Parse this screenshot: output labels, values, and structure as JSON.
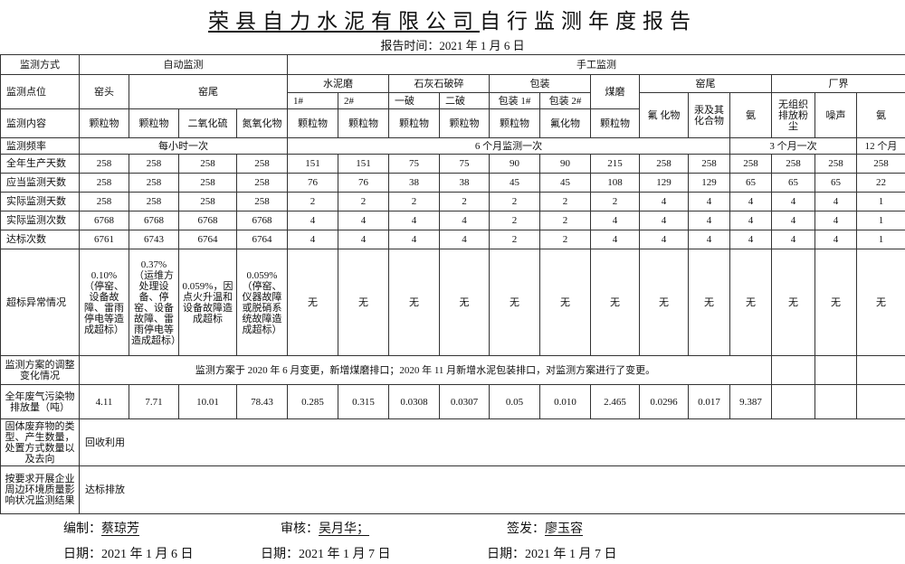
{
  "title": {
    "company": "荣县自力水泥有限公司",
    "rest": "自行监测年度报告"
  },
  "report_time": "报告时间：2021 年 1 月 6 日",
  "header": {
    "method_label": "监测方式",
    "auto": "自动监测",
    "manual": "手工监测",
    "point_label": "监测点位",
    "kiln_head": "窑头",
    "kiln_tail": "窑尾",
    "cement_mill": "水泥磨",
    "mill1": "1#",
    "mill2": "2#",
    "crusher": "石灰石破碎",
    "crusher1": "一破",
    "crusher2": "二破",
    "packing": "包装",
    "pack1": "包装 1#",
    "pack2": "包装 2#",
    "coal_mill": "煤磨",
    "kiln_tail_manual": "窑尾",
    "boundary": "厂界",
    "content_label": "监测内容",
    "contents": [
      "颗粒物",
      "颗粒物",
      "二氧化硫",
      "氮氧化物",
      "颗粒物",
      "颗粒物",
      "颗粒物",
      "颗粒物",
      "颗粒物",
      "氟化物",
      "颗粒物",
      "氟 化物",
      "汞及其化合物",
      "氨",
      "无组织排放粉尘",
      "噪声",
      "氨"
    ],
    "freq_label": "监测频率",
    "freq_auto": "每小时一次",
    "freq_6m": "6 个月监测一次",
    "freq_3m": "3 个月一次",
    "freq_12m": "12 个月"
  },
  "rows": [
    {
      "label": "全年生产天数",
      "values": [
        "258",
        "258",
        "258",
        "258",
        "151",
        "151",
        "75",
        "75",
        "90",
        "90",
        "215",
        "258",
        "258",
        "258",
        "258",
        "258",
        "258"
      ]
    },
    {
      "label": "应当监测天数",
      "values": [
        "258",
        "258",
        "258",
        "258",
        "76",
        "76",
        "38",
        "38",
        "45",
        "45",
        "108",
        "129",
        "129",
        "65",
        "65",
        "65",
        "22"
      ]
    },
    {
      "label": "实际监测天数",
      "values": [
        "258",
        "258",
        "258",
        "258",
        "2",
        "2",
        "2",
        "2",
        "2",
        "2",
        "2",
        "4",
        "4",
        "4",
        "4",
        "4",
        "1"
      ]
    },
    {
      "label": "实际监测次数",
      "values": [
        "6768",
        "6768",
        "6768",
        "6768",
        "4",
        "4",
        "4",
        "4",
        "2",
        "2",
        "4",
        "4",
        "4",
        "4",
        "4",
        "4",
        "1"
      ]
    },
    {
      "label": "达标次数",
      "values": [
        "6761",
        "6743",
        "6764",
        "6764",
        "4",
        "4",
        "4",
        "4",
        "2",
        "2",
        "4",
        "4",
        "4",
        "4",
        "4",
        "4",
        "1"
      ]
    }
  ],
  "anomaly": {
    "label": "超标异常情况",
    "values": [
      "0.10%（停窑、设备故障、雷雨停电等造成超标）",
      "0.37%（运维方处理设备、停窑、设备故障、雷雨停电等造成超标）",
      "0.059%，因点火升温和设备故障造成超标",
      "0.059%（停窑、仪器故障或脱硝系统故障造成超标）",
      "无",
      "无",
      "无",
      "无",
      "无",
      "无",
      "无",
      "无",
      "无",
      "无",
      "无",
      "无",
      "无"
    ]
  },
  "plan_change": {
    "label": "监测方案的调整变化情况",
    "text": "监测方案于 2020 年 6 月变更，新增煤磨排口；2020 年 11 月新增水泥包装排口，对监测方案进行了变更。"
  },
  "emissions": {
    "label": "全年废气污染物排放量（吨）",
    "values": [
      "4.11",
      "7.71",
      "10.01",
      "78.43",
      "0.285",
      "0.315",
      "0.0308",
      "0.0307",
      "0.05",
      "0.010",
      "2.465",
      "0.0296",
      "0.017",
      "9.387",
      "",
      "",
      ""
    ]
  },
  "solid_waste": {
    "label": "固体废弃物的类型、产生数量，处置方式数量以及去向",
    "text": "回收利用"
  },
  "environment": {
    "label": "按要求开展企业周边环境质量影响状况监测结果",
    "text": "达标排放"
  },
  "footer": {
    "compiled_label": "编制：",
    "compiled_name": "蔡琼芳",
    "reviewed_label": "审核：",
    "reviewed_name": "吴月华；",
    "issued_label": "签发：",
    "issued_name": "廖玉容",
    "date1": "日期：2021 年 1 月 6 日",
    "date2": "日期：2021 年 1 月 7 日",
    "date3": "日期：2021 年 1 月 7 日"
  }
}
